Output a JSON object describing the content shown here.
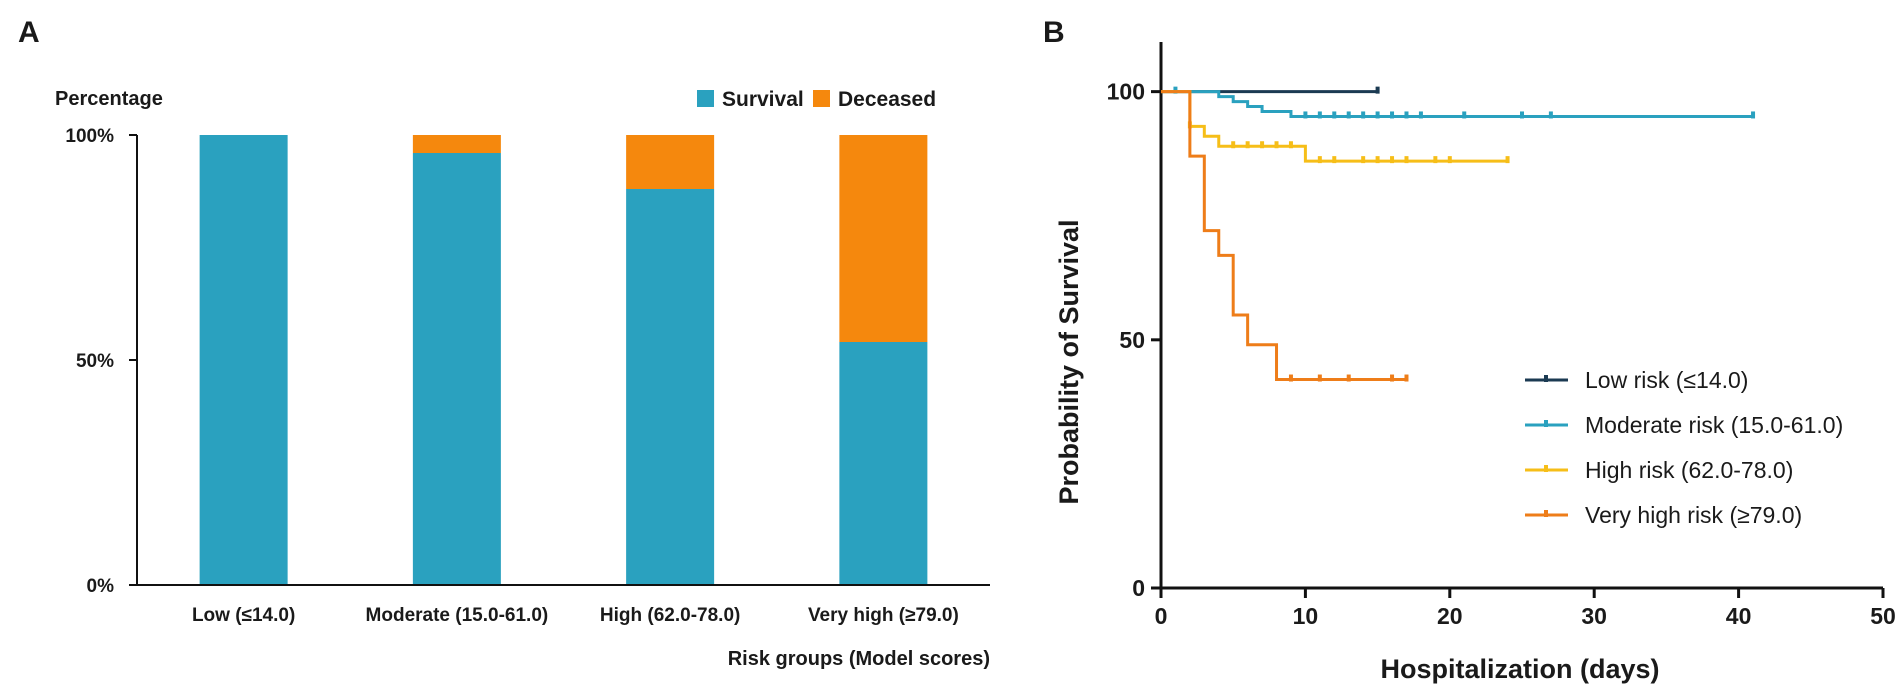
{
  "chart_data": [
    {
      "panel": "A",
      "type": "bar",
      "stacked": true,
      "ylabel": "Percentage",
      "xlabel": "Risk groups (Model scores)",
      "categories": [
        "Low (≤14.0)",
        "Moderate (15.0-61.0)",
        "High (62.0-78.0)",
        "Very high (≥79.0)"
      ],
      "series": [
        {
          "name": "Survival",
          "color": "#2aa1bf",
          "values": [
            100,
            96,
            88,
            54
          ]
        },
        {
          "name": "Deceased",
          "color": "#f5880d",
          "values": [
            0,
            4,
            12,
            46
          ]
        }
      ],
      "ylim": [
        0,
        100
      ],
      "yticks": [
        0,
        50,
        100
      ],
      "ytick_labels": [
        "0%",
        "50%",
        "100%"
      ],
      "legend": "top-right"
    },
    {
      "panel": "B",
      "type": "line",
      "step": true,
      "xlabel": "Hospitalization (days)",
      "ylabel": "Probability of Survival",
      "xlim": [
        0,
        50
      ],
      "ylim": [
        0,
        110
      ],
      "xticks": [
        0,
        10,
        20,
        30,
        40,
        50
      ],
      "yticks": [
        0,
        50,
        100
      ],
      "legend": "center-right",
      "series": [
        {
          "name": "Low risk (≤14.0)",
          "color": "#1b3a52",
          "steps": [
            [
              0,
              100
            ],
            [
              15,
              100
            ]
          ],
          "censored": [
            15
          ]
        },
        {
          "name": "Moderate risk (15.0-61.0)",
          "color": "#2aa1bf",
          "steps": [
            [
              0,
              100
            ],
            [
              4,
              99
            ],
            [
              5,
              98
            ],
            [
              6,
              97
            ],
            [
              7,
              96
            ],
            [
              9,
              95
            ],
            [
              41,
              95
            ]
          ],
          "censored": [
            1,
            10,
            11,
            12,
            13,
            14,
            15,
            16,
            17,
            18,
            21,
            25,
            27,
            41
          ]
        },
        {
          "name": "High risk (62.0-78.0)",
          "color": "#f6be18",
          "steps": [
            [
              0,
              100
            ],
            [
              2,
              93
            ],
            [
              3,
              91
            ],
            [
              4,
              89
            ],
            [
              10,
              86
            ],
            [
              24,
              86
            ]
          ],
          "censored": [
            2,
            5,
            6,
            7,
            8,
            9,
            11,
            12,
            14,
            15,
            16,
            17,
            19,
            20,
            24
          ]
        },
        {
          "name": "Very high risk (≥79.0)",
          "color": "#ee7d19",
          "steps": [
            [
              0,
              100
            ],
            [
              2,
              87
            ],
            [
              3,
              72
            ],
            [
              4,
              67
            ],
            [
              5,
              55
            ],
            [
              6,
              49
            ],
            [
              8,
              42
            ],
            [
              17,
              42
            ]
          ],
          "censored": [
            9,
            11,
            13,
            16,
            17
          ]
        }
      ]
    }
  ]
}
